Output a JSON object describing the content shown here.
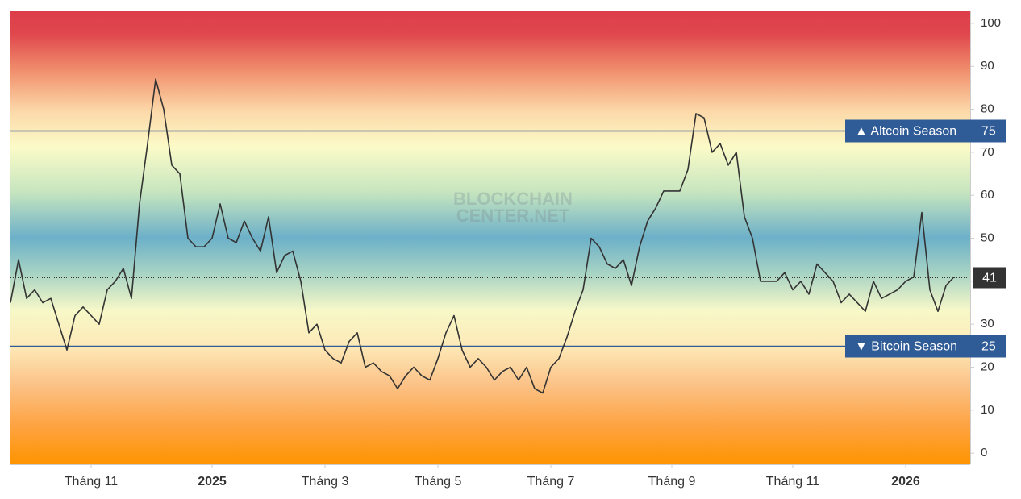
{
  "chart_data": {
    "type": "line",
    "watermark": [
      "BLOCKCHAIN",
      "CENTER.NET"
    ],
    "categories": [
      null,
      null,
      null,
      null,
      null,
      null,
      null,
      null,
      null,
      null,
      "Tháng 11",
      null,
      null,
      null,
      null,
      null,
      null,
      null,
      null,
      null,
      null,
      null,
      null,
      null,
      null,
      "2025",
      null,
      null,
      null,
      null,
      null,
      null,
      null,
      null,
      null,
      null,
      null,
      null,
      null,
      "Tháng 3",
      null,
      null,
      null,
      null,
      null,
      null,
      null,
      null,
      null,
      null,
      null,
      null,
      null,
      "Tháng 5",
      null,
      null,
      null,
      null,
      null,
      null,
      null,
      null,
      null,
      null,
      null,
      null,
      null,
      "Tháng 7",
      null,
      null,
      null,
      null,
      null,
      null,
      null,
      null,
      null,
      null,
      null,
      null,
      null,
      null,
      "Tháng 9",
      null,
      null,
      null,
      null,
      null,
      null,
      null,
      null,
      null,
      null,
      null,
      null,
      null,
      null,
      "Tháng 11",
      null,
      null,
      null,
      null,
      null,
      null,
      null,
      null,
      null,
      null,
      null,
      null,
      null,
      "2026",
      null,
      null,
      null,
      null,
      null,
      null
    ],
    "values": [
      35,
      45,
      36,
      38,
      35,
      36,
      30,
      24,
      32,
      34,
      32,
      30,
      38,
      40,
      43,
      36,
      58,
      72,
      87,
      80,
      67,
      65,
      50,
      48,
      48,
      50,
      58,
      50,
      49,
      54,
      50,
      47,
      55,
      42,
      46,
      47,
      40,
      28,
      30,
      24,
      22,
      21,
      26,
      28,
      20,
      21,
      19,
      18,
      15,
      18,
      20,
      18,
      17,
      22,
      28,
      32,
      24,
      20,
      22,
      20,
      17,
      19,
      20,
      17,
      20,
      15,
      14,
      20,
      22,
      27,
      33,
      38,
      50,
      48,
      44,
      43,
      45,
      39,
      48,
      54,
      57,
      61,
      61,
      61,
      66,
      79,
      78,
      70,
      72,
      67,
      70,
      55,
      50,
      40,
      40,
      40,
      42,
      38,
      40,
      37,
      44,
      42,
      40,
      35,
      37,
      35,
      33,
      40,
      36,
      37,
      38,
      40,
      41,
      56,
      38,
      33,
      39,
      41
    ],
    "color": "#333333",
    "ylim": [
      -2.6,
      102.8
    ],
    "yticks": [
      0,
      10,
      20,
      30,
      40,
      50,
      60,
      70,
      80,
      90,
      100
    ],
    "reference_lines": [
      {
        "value": 75,
        "label": "▲ Altcoin Season",
        "color": "#2f5b96"
      },
      {
        "value": 25,
        "label": "▼ Bitcoin Season",
        "color": "#2f5b96"
      }
    ]
  }
}
